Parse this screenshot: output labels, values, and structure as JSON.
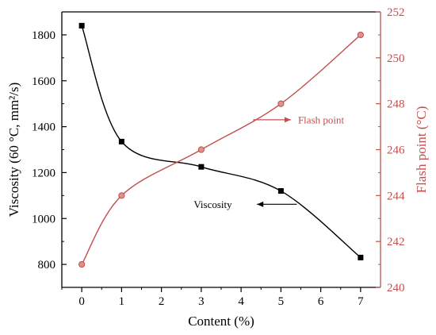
{
  "chart_data": {
    "type": "line",
    "xlabel": "Content (%)",
    "ylabel_left": "Viscosity (60 °C, mm²/s)",
    "ylabel_right": "Flash point (°C)",
    "x_tick_labels": [
      "0",
      "1",
      "2",
      "3",
      "4",
      "5",
      "6",
      "7"
    ],
    "xlim": [
      -0.5,
      7.5
    ],
    "ylim_left": [
      700,
      1900
    ],
    "ylim_right": [
      240,
      252
    ],
    "left_ticks": [
      "800",
      "1000",
      "1200",
      "1400",
      "1600",
      "1800"
    ],
    "right_ticks": [
      "240",
      "242",
      "244",
      "246",
      "248",
      "250",
      "252"
    ],
    "grid": false,
    "colors": {
      "viscosity": "#000000",
      "flash": "#c0504d"
    },
    "series": [
      {
        "axis": "left",
        "marker": "square",
        "x": [
          0,
          1,
          3,
          5,
          7
        ],
        "values": [
          1840,
          1335,
          1225,
          1120,
          830
        ]
      },
      {
        "axis": "right",
        "marker": "circle",
        "x": [
          0,
          1,
          3,
          5,
          7
        ],
        "values": [
          241,
          244,
          246,
          248,
          251
        ]
      }
    ],
    "annotations": [
      {
        "text": "Viscosity",
        "x": 2.85,
        "y_left": 1062,
        "arrow": "right-axis-to-left",
        "arrow_from_x": 5.4,
        "arrow_to_x": 4.4
      },
      {
        "text": "Flash point",
        "x": 5.35,
        "y_right": 247.3,
        "arrow": "left-to-right",
        "arrow_from_x": 4.3,
        "arrow_to_x": 5.25
      }
    ]
  }
}
